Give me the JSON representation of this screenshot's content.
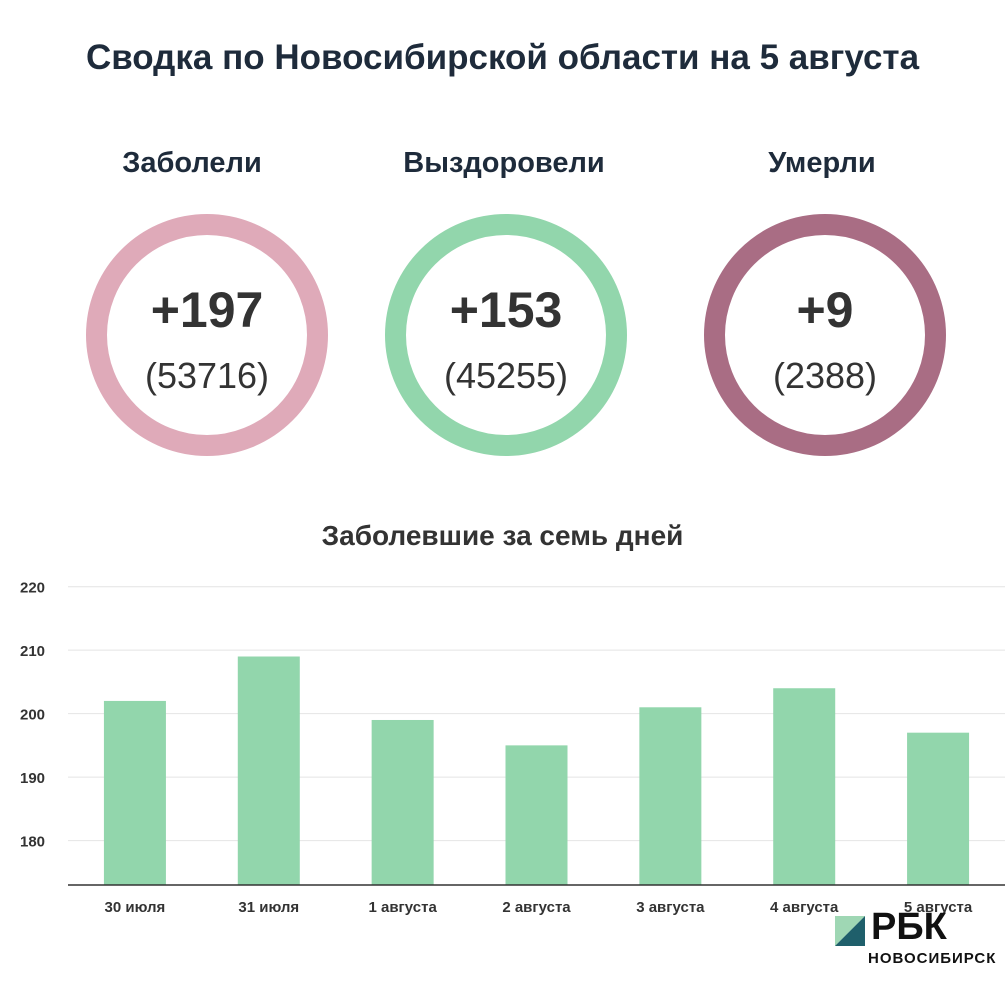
{
  "title": "Сводка по Новосибирской области на 5 августа",
  "stats": [
    {
      "label": "Заболели",
      "delta": "+197",
      "total": "(53716)",
      "color": "#dfaab9"
    },
    {
      "label": "Выздоровели",
      "delta": "+153",
      "total": "(45255)",
      "color": "#92d6ac"
    },
    {
      "label": "Умерли",
      "delta": "+9",
      "total": "(2388)",
      "color": "#a96d84"
    }
  ],
  "chart_data": {
    "type": "bar",
    "title": "Заболевшие за семь дней",
    "categories": [
      "30 июля",
      "31 июля",
      "1 августа",
      "2 августа",
      "3 августа",
      "4 августа",
      "5 августа"
    ],
    "values": [
      202,
      209,
      199,
      195,
      201,
      204,
      197
    ],
    "ylim": [
      173,
      222
    ],
    "yticks": [
      180,
      190,
      200,
      210,
      220
    ],
    "grid": true,
    "bar_color": "#92d6ac",
    "xlabel": "",
    "ylabel": ""
  },
  "logo": {
    "text": "РБК",
    "sub": "НОВОСИБИРСК"
  }
}
